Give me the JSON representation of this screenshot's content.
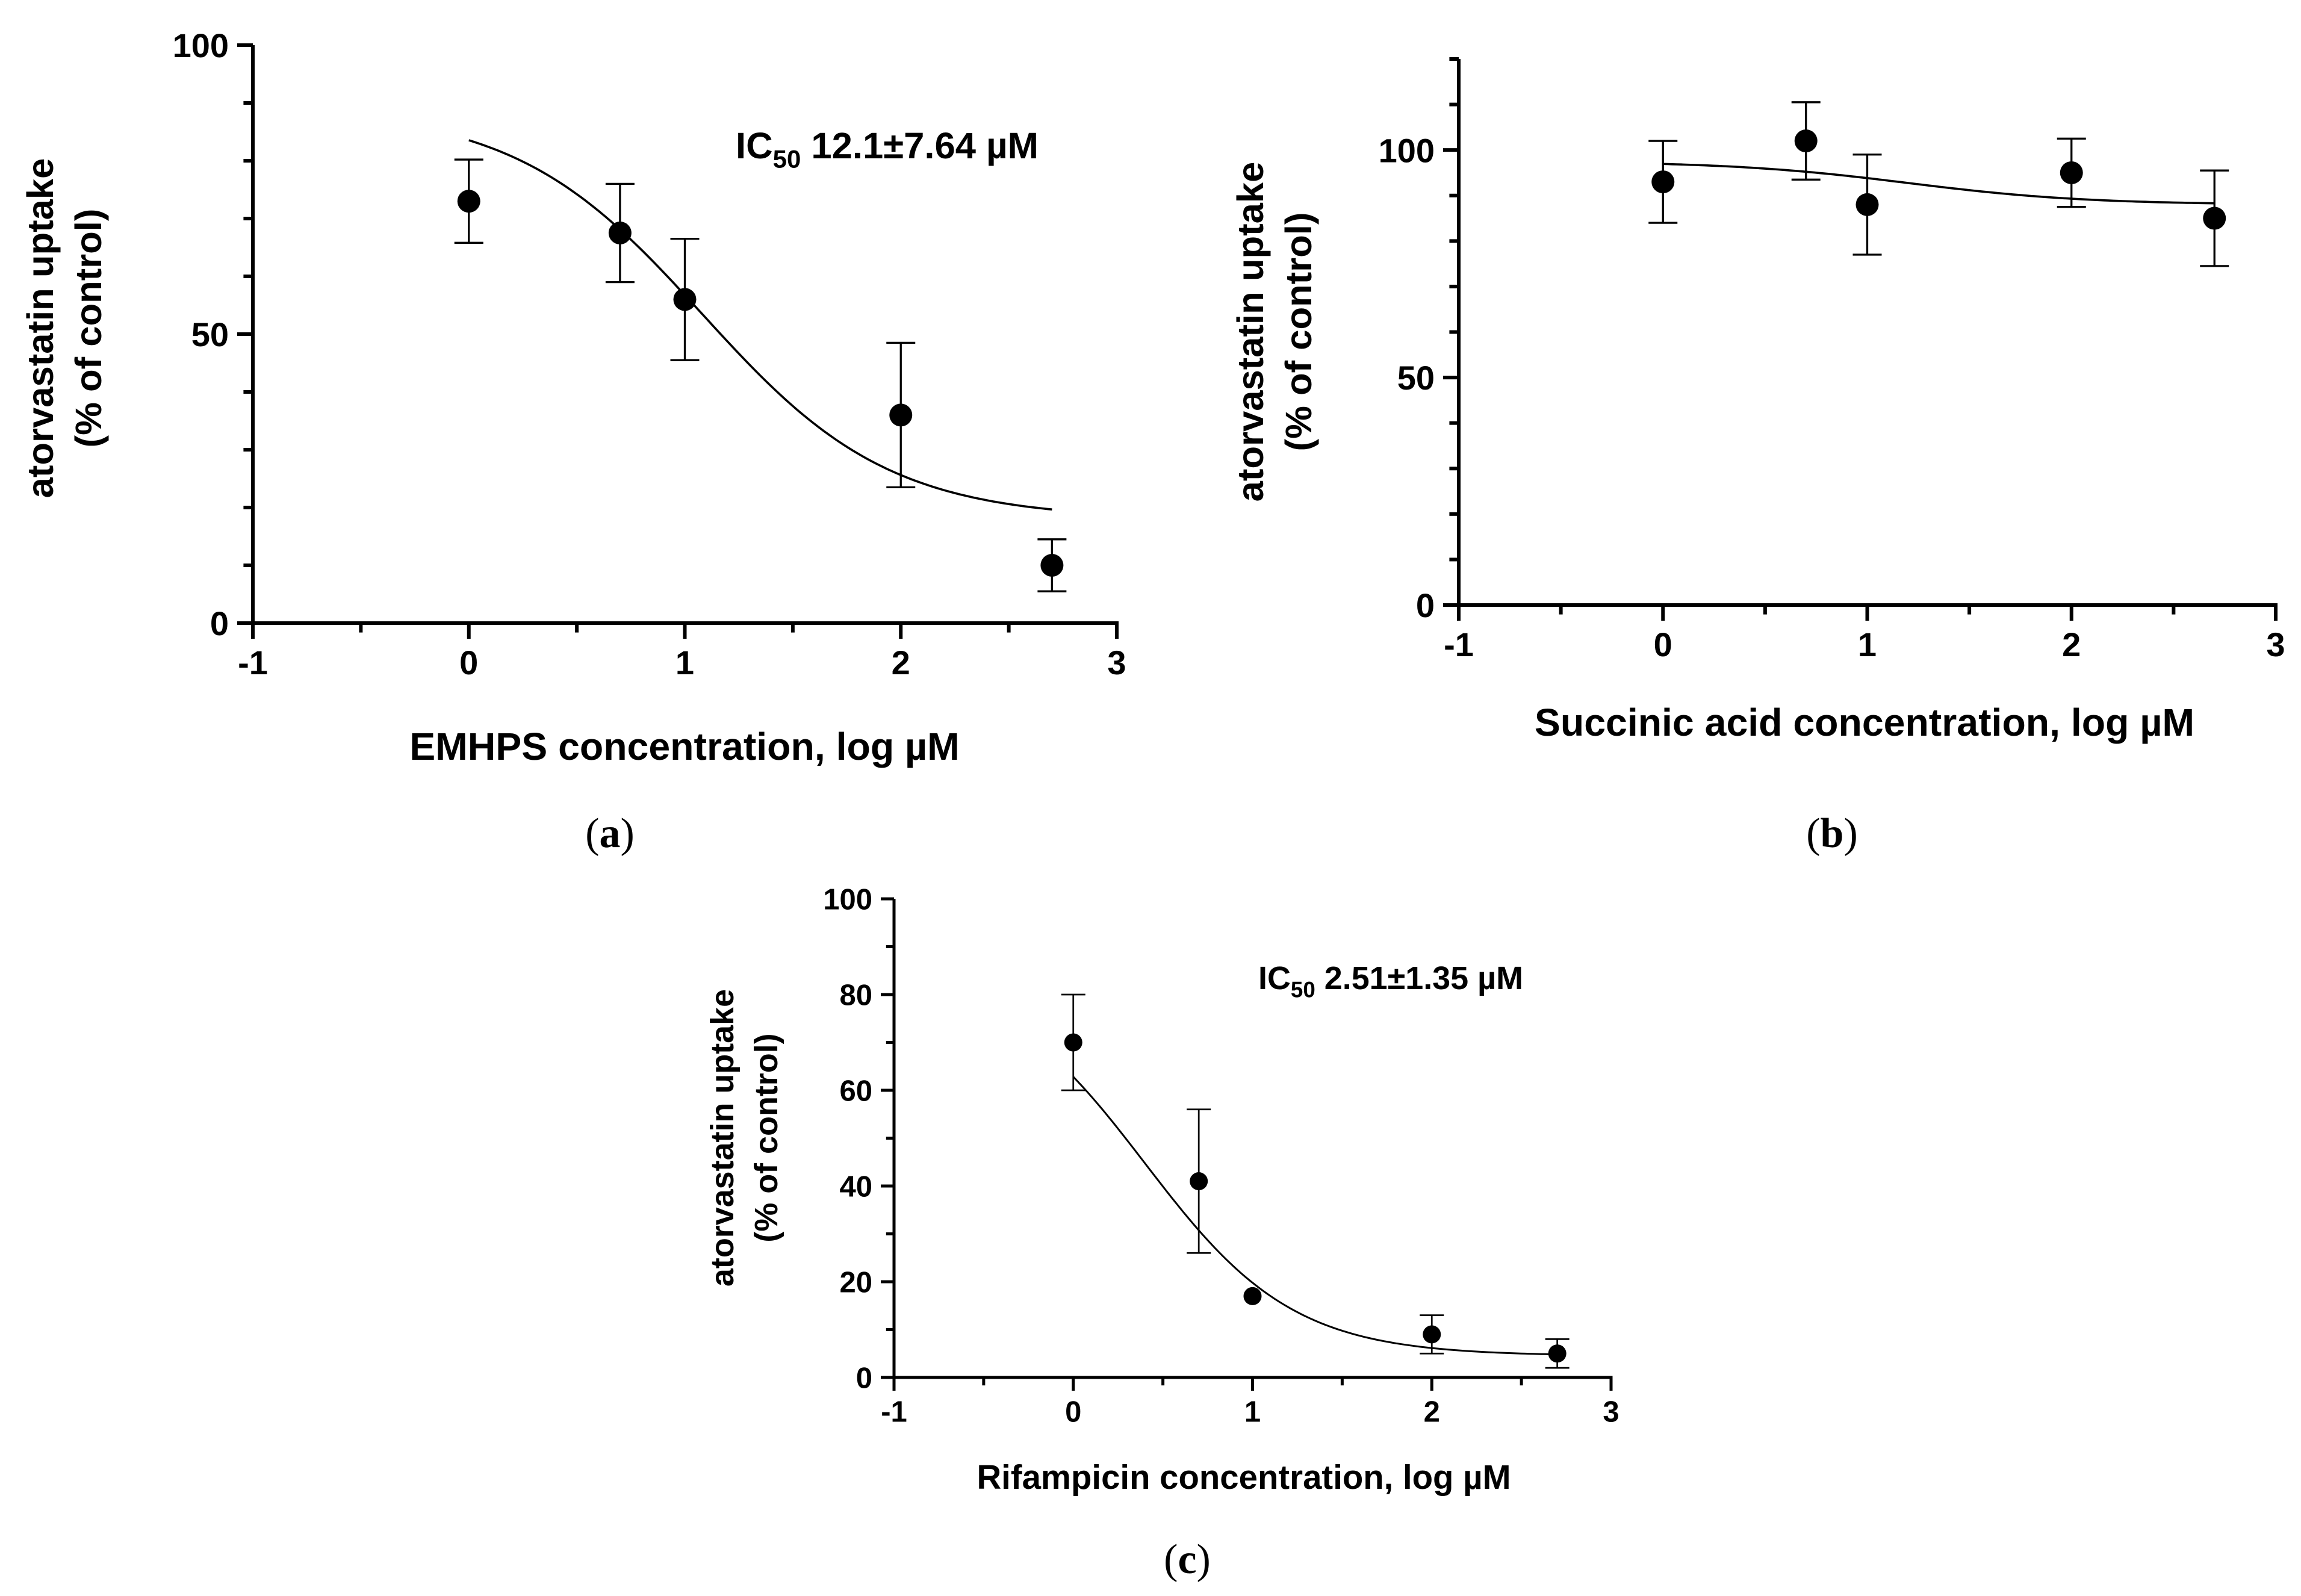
{
  "chart_data": [
    {
      "type": "scatter",
      "panel_label": "a",
      "title": "",
      "xlabel": "EMHPS concentration, log µM",
      "ylabel": "atorvastatin uptake",
      "ylabel2": "(% of control)",
      "xlim": [
        -1,
        3
      ],
      "ylim": [
        0,
        100
      ],
      "xticks": [
        -1,
        0,
        1,
        2,
        3
      ],
      "yticks": [
        0,
        50,
        100
      ],
      "annotation": {
        "prefix": "IC",
        "subscript": "50",
        "value": "12.1±7.64 µM"
      },
      "series": [
        {
          "name": "EMHPS",
          "x": [
            0,
            0.7,
            1,
            2,
            2.7
          ],
          "y": [
            73,
            67.5,
            56,
            36,
            10
          ],
          "err": [
            7.2,
            8.5,
            10.5,
            12.5,
            4.5
          ]
        }
      ],
      "fit": {
        "type": "sigmoid",
        "top": 89,
        "bottom": 18,
        "logIC50": 1.08,
        "hill": 1.0,
        "x_range": [
          0,
          2.7
        ]
      }
    },
    {
      "type": "scatter",
      "panel_label": "b",
      "title": "",
      "xlabel": "Succinic acid concentration, log µM",
      "ylabel": "atorvastatin uptake",
      "ylabel2": "(% of control)",
      "xlim": [
        -1,
        3
      ],
      "ylim": [
        0,
        120
      ],
      "xticks": [
        -1,
        0,
        1,
        2,
        3
      ],
      "yticks": [
        0,
        50,
        100
      ],
      "annotation": null,
      "series": [
        {
          "name": "Succinic acid",
          "x": [
            0,
            0.7,
            1,
            2,
            2.7
          ],
          "y": [
            93,
            102,
            88,
            95,
            85
          ],
          "err": [
            9,
            8.5,
            11,
            7.5,
            10.5
          ]
        }
      ],
      "fit": {
        "type": "sigmoid",
        "top": 97.5,
        "bottom": 88,
        "logIC50": 1.2,
        "hill": 1.0,
        "x_range": [
          0,
          2.7
        ]
      }
    },
    {
      "type": "scatter",
      "panel_label": "c",
      "title": "",
      "xlabel": "Rifampicin concentration, log µM",
      "ylabel": "atorvastatin uptake",
      "ylabel2": "(% of control)",
      "xlim": [
        -1,
        3
      ],
      "ylim": [
        0,
        100
      ],
      "xticks": [
        -1,
        0,
        1,
        2,
        3
      ],
      "yticks": [
        0,
        20,
        40,
        60,
        80,
        100
      ],
      "annotation": {
        "prefix": "IC",
        "subscript": "50",
        "value": "2.51±1.35 µM"
      },
      "series": [
        {
          "name": "Rifampicin",
          "x": [
            0,
            0.7,
            1,
            2,
            2.7
          ],
          "y": [
            70,
            41,
            17,
            9,
            5
          ],
          "err": [
            10,
            15,
            0,
            4,
            3
          ]
        }
      ],
      "fit": {
        "type": "sigmoid",
        "top": 85,
        "bottom": 4.5,
        "logIC50": 0.4,
        "hill": 1.05,
        "x_range": [
          0,
          2.7
        ]
      }
    }
  ]
}
